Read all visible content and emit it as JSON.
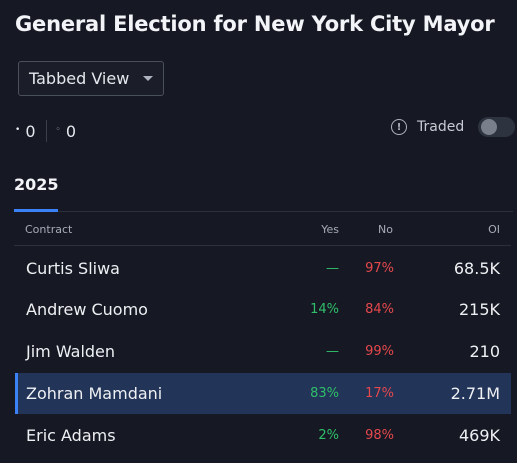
{
  "title": "General Election for New York City Mayor",
  "view_select": {
    "selected": "Tabbed View"
  },
  "counts": {
    "filled": "0",
    "open": "0",
    "filled_glyph": "•",
    "open_glyph": "◦"
  },
  "traded": {
    "label": "Traded",
    "info_glyph": "!",
    "toggle_on": false
  },
  "tabs": [
    {
      "label": "2025",
      "active": true
    }
  ],
  "table": {
    "headers": {
      "contract": "Contract",
      "yes": "Yes",
      "no": "No",
      "oi": "OI"
    },
    "rows": [
      {
        "name": "Curtis Sliwa",
        "yes": "—",
        "no": "97%",
        "oi": "68.5K"
      },
      {
        "name": "Andrew Cuomo",
        "yes": "14%",
        "no": "84%",
        "oi": "215K"
      },
      {
        "name": "Jim Walden",
        "yes": "—",
        "no": "99%",
        "oi": "210"
      },
      {
        "name": "Zohran Mamdani",
        "yes": "83%",
        "no": "17%",
        "oi": "2.71M",
        "selected": true
      },
      {
        "name": "Eric Adams",
        "yes": "2%",
        "no": "98%",
        "oi": "469K"
      }
    ]
  },
  "colors": {
    "background": "#161923",
    "accent": "#3b82f6",
    "yes": "#2fbf6a",
    "no": "#e5484d",
    "selected_row": "#223457"
  }
}
